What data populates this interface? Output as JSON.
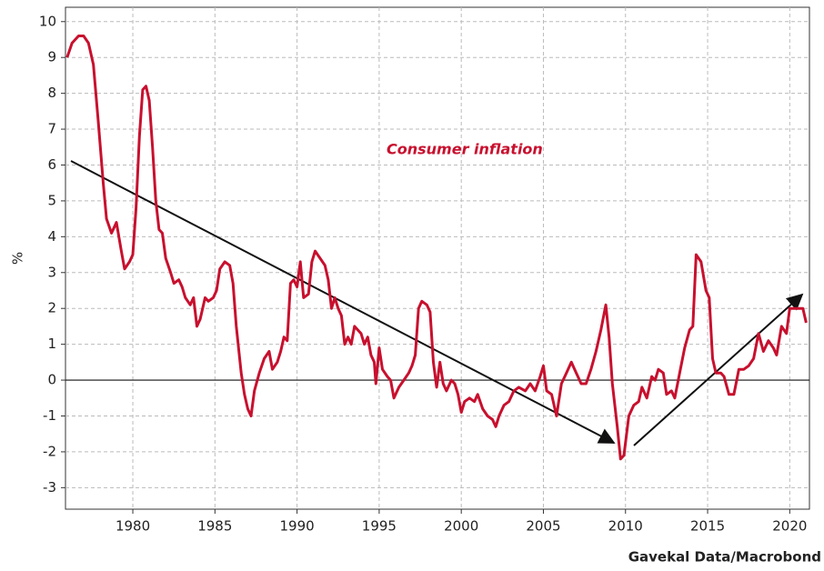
{
  "chart_data": {
    "type": "line",
    "y_label": "%",
    "annotation": "Consumer inflation",
    "source": "Gavekal Data/Macrobond",
    "xlim": [
      1975.9,
      2021.2
    ],
    "xticks": [
      1980,
      1985,
      1990,
      1995,
      2000,
      2005,
      2010,
      2015,
      2020
    ],
    "ylim": [
      -3.6,
      10.4
    ],
    "yticks": [
      -3,
      -2,
      -1,
      0,
      1,
      2,
      3,
      4,
      5,
      6,
      7,
      8,
      9,
      10
    ],
    "grid": true,
    "series": [
      {
        "name": "Consumer inflation",
        "color": "#c8102e",
        "x": [
          1976.0,
          1976.3,
          1976.7,
          1977.0,
          1977.3,
          1977.6,
          1977.9,
          1978.2,
          1978.4,
          1978.7,
          1979.0,
          1979.3,
          1979.5,
          1979.8,
          1980.0,
          1980.2,
          1980.4,
          1980.6,
          1980.8,
          1981.0,
          1981.2,
          1981.4,
          1981.6,
          1981.8,
          1982.0,
          1982.3,
          1982.5,
          1982.8,
          1983.0,
          1983.2,
          1983.5,
          1983.7,
          1983.9,
          1984.1,
          1984.4,
          1984.6,
          1984.9,
          1985.1,
          1985.3,
          1985.6,
          1985.9,
          1986.1,
          1986.3,
          1986.6,
          1986.8,
          1987.0,
          1987.2,
          1987.4,
          1987.7,
          1988.0,
          1988.3,
          1988.5,
          1988.8,
          1989.0,
          1989.2,
          1989.4,
          1989.6,
          1989.8,
          1990.0,
          1990.2,
          1990.4,
          1990.7,
          1990.9,
          1991.1,
          1991.4,
          1991.7,
          1991.9,
          1992.1,
          1992.3,
          1992.5,
          1992.7,
          1992.9,
          1993.1,
          1993.3,
          1993.5,
          1993.7,
          1993.9,
          1994.1,
          1994.3,
          1994.5,
          1994.7,
          1994.8,
          1995.0,
          1995.2,
          1995.5,
          1995.7,
          1995.9,
          1996.2,
          1996.5,
          1996.8,
          1997.0,
          1997.2,
          1997.4,
          1997.6,
          1997.9,
          1998.1,
          1998.3,
          1998.5,
          1998.7,
          1998.9,
          1999.1,
          1999.4,
          1999.6,
          1999.8,
          2000.0,
          2000.2,
          2000.5,
          2000.8,
          2001.0,
          2001.3,
          2001.6,
          2001.9,
          2002.1,
          2002.3,
          2002.6,
          2002.9,
          2003.2,
          2003.5,
          2003.9,
          2004.2,
          2004.5,
          2004.8,
          2005.0,
          2005.2,
          2005.5,
          2005.8,
          2006.1,
          2006.4,
          2006.7,
          2007.0,
          2007.3,
          2007.6,
          2007.9,
          2008.2,
          2008.5,
          2008.8,
          2009.0,
          2009.2,
          2009.5,
          2009.7,
          2009.9,
          2010.2,
          2010.5,
          2010.8,
          2011.0,
          2011.3,
          2011.6,
          2011.8,
          2012.0,
          2012.3,
          2012.5,
          2012.8,
          2013.0,
          2013.3,
          2013.6,
          2013.9,
          2014.1,
          2014.3,
          2014.6,
          2014.9,
          2015.1,
          2015.3,
          2015.5,
          2015.8,
          2016.0,
          2016.3,
          2016.6,
          2016.9,
          2017.2,
          2017.5,
          2017.8,
          2018.1,
          2018.4,
          2018.7,
          2019.0,
          2019.2,
          2019.5,
          2019.8,
          2020.0,
          2020.3,
          2020.6,
          2020.8,
          2021.0
        ],
        "values": [
          9.0,
          9.4,
          9.6,
          9.6,
          9.4,
          8.8,
          7.2,
          5.5,
          4.5,
          4.1,
          4.4,
          3.6,
          3.1,
          3.3,
          3.5,
          4.8,
          6.8,
          8.1,
          8.2,
          7.8,
          6.5,
          5.0,
          4.2,
          4.1,
          3.4,
          3.0,
          2.7,
          2.8,
          2.6,
          2.3,
          2.1,
          2.3,
          1.5,
          1.7,
          2.3,
          2.2,
          2.3,
          2.5,
          3.1,
          3.3,
          3.2,
          2.7,
          1.5,
          0.2,
          -0.4,
          -0.8,
          -1.0,
          -0.3,
          0.2,
          0.6,
          0.8,
          0.3,
          0.5,
          0.8,
          1.2,
          1.1,
          2.7,
          2.8,
          2.6,
          3.3,
          2.3,
          2.4,
          3.3,
          3.6,
          3.4,
          3.2,
          2.8,
          2.0,
          2.3,
          2.0,
          1.8,
          1.0,
          1.2,
          1.0,
          1.5,
          1.4,
          1.3,
          1.0,
          1.2,
          0.7,
          0.5,
          -0.1,
          0.9,
          0.3,
          0.1,
          0.0,
          -0.5,
          -0.2,
          0.0,
          0.2,
          0.4,
          0.7,
          2.0,
          2.2,
          2.1,
          1.9,
          0.5,
          -0.2,
          0.5,
          -0.1,
          -0.3,
          0.0,
          -0.1,
          -0.4,
          -0.9,
          -0.6,
          -0.5,
          -0.6,
          -0.4,
          -0.8,
          -1.0,
          -1.1,
          -1.3,
          -1.0,
          -0.7,
          -0.6,
          -0.3,
          -0.2,
          -0.3,
          -0.1,
          -0.3,
          0.1,
          0.4,
          -0.3,
          -0.4,
          -1.0,
          -0.1,
          0.2,
          0.5,
          0.2,
          -0.1,
          -0.1,
          0.3,
          0.8,
          1.4,
          2.1,
          1.2,
          -0.1,
          -1.3,
          -2.2,
          -2.1,
          -1.0,
          -0.7,
          -0.6,
          -0.2,
          -0.5,
          0.1,
          0.0,
          0.3,
          0.2,
          -0.4,
          -0.3,
          -0.5,
          0.2,
          0.9,
          1.4,
          1.5,
          3.5,
          3.3,
          2.5,
          2.3,
          0.6,
          0.2,
          0.2,
          0.1,
          -0.4,
          -0.4,
          0.3,
          0.3,
          0.4,
          0.6,
          1.3,
          0.8,
          1.1,
          0.9,
          0.7,
          1.5,
          1.3,
          2.0,
          2.0,
          2.0,
          2.0,
          1.6
        ]
      }
    ]
  }
}
